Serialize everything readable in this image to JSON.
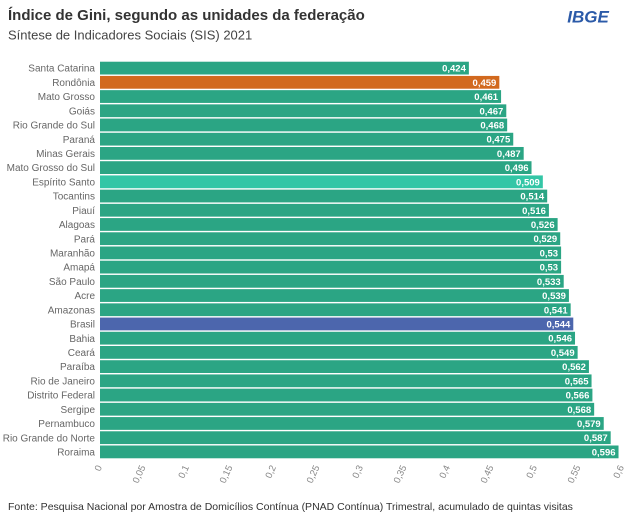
{
  "chart_data": {
    "type": "bar",
    "orientation": "horizontal",
    "title": "Índice de Gini, segundo as unidades da federação",
    "subtitle": "Síntese de Indicadores Sociais (SIS) 2021",
    "logo": "IBGE",
    "source": "Fonte: Pesquisa Nacional por Amostra de Domicílios Contínua (PNAD Contínua) Trimestral, acumulado de quintas visitas",
    "categories": [
      "Santa Catarina",
      "Rondônia",
      "Mato Grosso",
      "Goiás",
      "Rio Grande do Sul",
      "Paraná",
      "Minas Gerais",
      "Mato Grosso do Sul",
      "Espírito Santo",
      "Tocantins",
      "Piauí",
      "Alagoas",
      "Pará",
      "Maranhão",
      "Amapá",
      "São Paulo",
      "Acre",
      "Amazonas",
      "Brasil",
      "Bahia",
      "Ceará",
      "Paraíba",
      "Rio de Janeiro",
      "Distrito Federal",
      "Sergipe",
      "Pernambuco",
      "Rio Grande do Norte",
      "Roraima"
    ],
    "values": [
      0.424,
      0.459,
      0.461,
      0.467,
      0.468,
      0.475,
      0.487,
      0.496,
      0.509,
      0.514,
      0.516,
      0.526,
      0.529,
      0.53,
      0.53,
      0.533,
      0.539,
      0.541,
      0.544,
      0.546,
      0.549,
      0.562,
      0.565,
      0.566,
      0.568,
      0.579,
      0.587,
      0.596
    ],
    "value_labels": [
      "0,424",
      "0,459",
      "0,461",
      "0,467",
      "0,468",
      "0,475",
      "0,487",
      "0,496",
      "0,509",
      "0,514",
      "0,516",
      "0,526",
      "0,529",
      "0,53",
      "0,53",
      "0,533",
      "0,539",
      "0,541",
      "0,544",
      "0,546",
      "0,549",
      "0,562",
      "0,565",
      "0,566",
      "0,568",
      "0,579",
      "0,587",
      "0,596"
    ],
    "colors": [
      "#2ba584",
      "#d2691e",
      "#2ba584",
      "#2ba584",
      "#2ba584",
      "#2ba584",
      "#2ba584",
      "#2ba584",
      "#33c6a6",
      "#2ba584",
      "#2ba584",
      "#2ba584",
      "#2ba584",
      "#2ba584",
      "#2ba584",
      "#2ba584",
      "#2ba584",
      "#2ba584",
      "#4c66ad",
      "#2ba584",
      "#2ba584",
      "#2ba584",
      "#2ba584",
      "#2ba584",
      "#2ba584",
      "#2ba584",
      "#2ba584",
      "#2ba584"
    ],
    "xlim": [
      0,
      0.6
    ],
    "xticks": [
      0,
      {
        "value": 0.05,
        "label": "0,05"
      },
      {
        "value": 0.1,
        "label": "0,1"
      },
      {
        "value": 0.15,
        "label": "0,15"
      },
      {
        "value": 0.2,
        "label": "0,2"
      },
      {
        "value": 0.25,
        "label": "0,25"
      },
      {
        "value": 0.3,
        "label": "0,3"
      },
      {
        "value": 0.35,
        "label": "0,35"
      },
      {
        "value": 0.4,
        "label": "0,4"
      },
      {
        "value": 0.45,
        "label": "0,45"
      },
      {
        "value": 0.5,
        "label": "0,5"
      },
      {
        "value": 0.55,
        "label": "0,55"
      },
      {
        "value": 0.6,
        "label": "0,6"
      }
    ],
    "grid": false
  }
}
